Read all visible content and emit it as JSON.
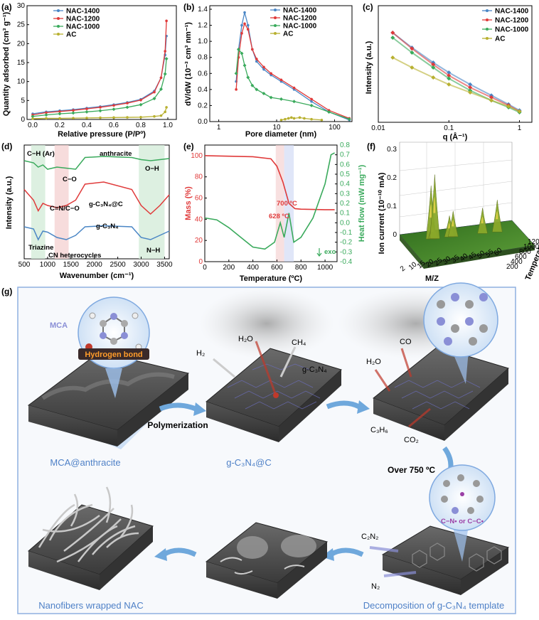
{
  "panel_a": {
    "label": "(a)",
    "title_x": "Relative pressure (P/Pº)",
    "title_y": "Quantity adsorbed (cm³ g⁻¹)",
    "xticks": [
      "0.0",
      "0.2",
      "0.4",
      "0.6",
      "0.8",
      "1.0"
    ],
    "yticks": [
      "0",
      "5",
      "10",
      "15",
      "20",
      "25",
      "30"
    ],
    "legend": [
      "NAC-1400",
      "NAC-1200",
      "NAC-1000",
      "AC"
    ]
  },
  "panel_b": {
    "label": "(b)",
    "title_x": "Pore diameter (nm)",
    "title_y": "dV/dW (10⁻³ cm³ nm⁻¹)",
    "xticks": [
      "1",
      "10",
      "100"
    ],
    "yticks": [
      "0.0",
      "0.2",
      "0.4",
      "0.6",
      "0.8",
      "1.0",
      "1.2",
      "1.4"
    ],
    "legend": [
      "NAC-1400",
      "NAC-1200",
      "NAC-1000",
      "AC"
    ]
  },
  "panel_c": {
    "label": "(c)",
    "title_x": "q (Å⁻¹)",
    "title_y": "Intensity (a.u.)",
    "xticks": [
      "0.01",
      "0.1",
      "1"
    ],
    "legend": [
      "NAC-1400",
      "NAC-1200",
      "NAC-1000",
      "AC"
    ]
  },
  "panel_d": {
    "label": "(d)",
    "title_x": "Wavenumber (cm⁻¹)",
    "title_y": "Intensity (a.u.)",
    "xticks": [
      "500",
      "1000",
      "1500",
      "2000",
      "2500",
      "3000",
      "3500"
    ],
    "annotations": [
      "C−H (Ar)",
      "anthracite",
      "O−H",
      "C−O",
      "C=N/C−O",
      "g-C₃N₄@C",
      "g-C₃N₄",
      "Triazine",
      "CN heterocycles",
      "N−H"
    ]
  },
  "panel_e": {
    "label": "(e)",
    "title_x": "Temperature (ºC)",
    "title_y_left": "Mass (%)",
    "title_y_right": "Heat flow (mW mg⁻¹)",
    "xticks": [
      "0",
      "200",
      "400",
      "600",
      "800",
      "1000"
    ],
    "yticks_left": [
      "0",
      "20",
      "40",
      "60",
      "80",
      "100"
    ],
    "yticks_right": [
      "-0.4",
      "-0.3",
      "-0.2",
      "-0.1",
      "0.0",
      "0.1",
      "0.2",
      "0.3",
      "0.4",
      "0.5",
      "0.6",
      "0.7",
      "0.8"
    ],
    "annotations": [
      "700 ºC",
      "628 ºC",
      "exo"
    ]
  },
  "panel_f": {
    "label": "(f)",
    "title_z": "Ion current (10⁻¹⁰ mA)",
    "title_x": "M/Z",
    "title_y": "Temperature (ºC)",
    "zticks": [
      "0",
      "0.1",
      "0.2",
      "0.3"
    ],
    "yticks": [
      "200",
      "400",
      "600",
      "800",
      "1000",
      "1200"
    ],
    "xticks": [
      "2",
      "10",
      "15",
      "20",
      "25",
      "30",
      "35",
      "40",
      "45",
      "50",
      "55",
      "60"
    ]
  },
  "panel_g": {
    "label": "(g)",
    "mca_label": "MCA",
    "hbond_label": "Hydrogen bond",
    "step1_caption": "MCA@anthracite",
    "polymerization": "Polymerization",
    "step2_caption": "g-C₃N₄@C",
    "h2": "H₂",
    "h2o": "H₂O",
    "ch4": "CH₄",
    "gcn": "g-C₃N₄",
    "h2o_b": "H₂O",
    "co": "CO",
    "c3h6": "C₃H₆",
    "co2": "CO₂",
    "over750": "Over 750 ºC",
    "c2n2": "C₂N₂",
    "n2": "N₂",
    "radical": "C−N• or C−C•",
    "step3_caption": "Decomposition of g-C₃N₄ template",
    "step4_caption": "Nanofibers wrapped NAC"
  },
  "colors": {
    "nac1400": "#4a86c5",
    "nac1200": "#e03a3a",
    "nac1000": "#3aaa5c",
    "ac": "#b8b030",
    "border": "#8fb0e0",
    "caption": "#4f81c7",
    "arrow": "#6fa8dc"
  },
  "chart_data": [
    {
      "type": "line",
      "title": "",
      "xlabel": "Relative pressure (P/Pº)",
      "ylabel": "Quantity adsorbed (cm³ g⁻¹)",
      "xlim": [
        0,
        1
      ],
      "ylim": [
        0,
        30
      ],
      "series": [
        {
          "name": "NAC-1400",
          "x": [
            0,
            0.1,
            0.2,
            0.3,
            0.4,
            0.5,
            0.6,
            0.7,
            0.8,
            0.9,
            0.95,
            0.98,
            0.99
          ],
          "y": [
            1.5,
            2,
            2.3,
            2.6,
            3,
            3.4,
            3.9,
            4.5,
            5.3,
            7.5,
            11,
            17,
            22
          ]
        },
        {
          "name": "NAC-1200",
          "x": [
            0,
            0.1,
            0.2,
            0.3,
            0.4,
            0.5,
            0.6,
            0.7,
            0.8,
            0.9,
            0.95,
            0.98,
            0.99
          ],
          "y": [
            1.2,
            1.8,
            2.1,
            2.4,
            2.8,
            3.2,
            3.7,
            4.3,
            5.1,
            7.2,
            11,
            18,
            26
          ]
        },
        {
          "name": "NAC-1000",
          "x": [
            0,
            0.1,
            0.2,
            0.3,
            0.4,
            0.5,
            0.6,
            0.7,
            0.8,
            0.9,
            0.95,
            0.98,
            0.99
          ],
          "y": [
            0.8,
            1.2,
            1.5,
            1.7,
            2,
            2.3,
            2.7,
            3.2,
            3.9,
            5.5,
            8,
            12,
            16
          ]
        },
        {
          "name": "AC",
          "x": [
            0,
            0.1,
            0.2,
            0.3,
            0.4,
            0.5,
            0.6,
            0.7,
            0.8,
            0.9,
            0.95,
            0.98,
            0.99
          ],
          "y": [
            0.2,
            0.3,
            0.3,
            0.35,
            0.4,
            0.45,
            0.5,
            0.55,
            0.6,
            0.8,
            1,
            2,
            3.2
          ]
        }
      ]
    },
    {
      "type": "line",
      "title": "",
      "xlabel": "Pore diameter (nm)",
      "ylabel": "dV/dW",
      "xscale": "log",
      "xlim": [
        0.7,
        200
      ],
      "ylim": [
        0,
        1.4
      ],
      "series": [
        {
          "name": "NAC-1400",
          "x": [
            2,
            2.2,
            2.5,
            2.8,
            3.2,
            3.8,
            4.5,
            6,
            8,
            12,
            20,
            40,
            80,
            180
          ],
          "y": [
            0.5,
            0.9,
            1.2,
            1.36,
            1.2,
            0.9,
            0.75,
            0.65,
            0.58,
            0.5,
            0.4,
            0.25,
            0.12,
            0.02
          ]
        },
        {
          "name": "NAC-1200",
          "x": [
            2,
            2.2,
            2.5,
            2.8,
            3.2,
            3.8,
            4.5,
            6,
            8,
            12,
            20,
            40,
            80,
            180
          ],
          "y": [
            0.4,
            0.8,
            1.1,
            1.22,
            1.15,
            0.9,
            0.78,
            0.68,
            0.6,
            0.52,
            0.42,
            0.28,
            0.14,
            0.04
          ]
        },
        {
          "name": "NAC-1000",
          "x": [
            2,
            2.2,
            2.5,
            2.8,
            3.2,
            3.8,
            4.5,
            6,
            8,
            12,
            20,
            40,
            80,
            180
          ],
          "y": [
            0.6,
            0.9,
            0.85,
            0.7,
            0.55,
            0.45,
            0.4,
            0.35,
            0.3,
            0.28,
            0.25,
            0.2,
            0.12,
            0.03
          ]
        },
        {
          "name": "AC",
          "x": [
            12,
            14,
            16,
            18,
            20,
            25,
            30,
            40,
            60
          ],
          "y": [
            0.02,
            0.03,
            0.04,
            0.05,
            0.04,
            0.05,
            0.04,
            0.03,
            0.02
          ]
        }
      ]
    },
    {
      "type": "scatter",
      "title": "",
      "xlabel": "q (Å⁻¹)",
      "ylabel": "Intensity (a.u.)",
      "xscale": "log",
      "xlim": [
        0.01,
        1.5
      ],
      "series": [
        {
          "name": "NAC-1400",
          "x": [
            0.016,
            0.03,
            0.06,
            0.1,
            0.2,
            0.4,
            0.7,
            1
          ],
          "y": [
            0.9,
            0.75,
            0.6,
            0.5,
            0.38,
            0.27,
            0.18,
            0.12
          ]
        },
        {
          "name": "NAC-1200",
          "x": [
            0.016,
            0.03,
            0.06,
            0.1,
            0.2,
            0.4,
            0.7,
            1
          ],
          "y": [
            0.9,
            0.74,
            0.58,
            0.47,
            0.35,
            0.25,
            0.17,
            0.11
          ]
        },
        {
          "name": "NAC-1000",
          "x": [
            0.016,
            0.03,
            0.06,
            0.1,
            0.2,
            0.4,
            0.7,
            1
          ],
          "y": [
            0.85,
            0.7,
            0.55,
            0.44,
            0.32,
            0.22,
            0.15,
            0.1
          ]
        },
        {
          "name": "AC",
          "x": [
            0.016,
            0.03,
            0.06,
            0.1,
            0.2,
            0.4,
            0.7,
            1
          ],
          "y": [
            0.65,
            0.55,
            0.45,
            0.38,
            0.3,
            0.22,
            0.16,
            0.11
          ]
        }
      ]
    },
    {
      "type": "line",
      "title": "",
      "xlabel": "Wavenumber (cm⁻¹)",
      "ylabel": "Intensity (a.u.)",
      "xlim": [
        500,
        3600
      ],
      "series": [
        {
          "name": "anthracite",
          "x": [
            500,
            700,
            800,
            900,
            1000,
            1200,
            1400,
            1600,
            1800,
            2200,
            2800,
            3000,
            3200,
            3400,
            3600
          ],
          "y": [
            0.92,
            0.9,
            0.86,
            0.88,
            0.84,
            0.86,
            0.85,
            0.84,
            0.95,
            0.96,
            0.95,
            0.93,
            0.92,
            0.93,
            0.94
          ]
        },
        {
          "name": "g-C₃N₄@C",
          "x": [
            500,
            700,
            800,
            900,
            1000,
            1200,
            1400,
            1600,
            1800,
            2200,
            2800,
            3000,
            3200,
            3400,
            3600
          ],
          "y": [
            0.65,
            0.55,
            0.45,
            0.52,
            0.5,
            0.48,
            0.5,
            0.55,
            0.7,
            0.72,
            0.65,
            0.5,
            0.42,
            0.5,
            0.6
          ]
        },
        {
          "name": "g-C₃N₄",
          "x": [
            500,
            700,
            800,
            900,
            1000,
            1200,
            1400,
            1600,
            1800,
            2200,
            2800,
            3000,
            3200,
            3400,
            3600
          ],
          "y": [
            0.3,
            0.28,
            0.18,
            0.26,
            0.25,
            0.2,
            0.18,
            0.22,
            0.3,
            0.31,
            0.3,
            0.2,
            0.18,
            0.22,
            0.26
          ]
        }
      ]
    },
    {
      "type": "line",
      "title": "",
      "xlabel": "Temperature (ºC)",
      "ylabel": "Mass (%)",
      "xlim": [
        0,
        1100
      ],
      "ylim": [
        0,
        100
      ],
      "series": [
        {
          "name": "Mass (%)",
          "x": [
            0,
            200,
            400,
            550,
            600,
            650,
            700,
            750,
            800,
            1000,
            1080
          ],
          "y": [
            100,
            99.5,
            99,
            97,
            90,
            75,
            55,
            50,
            49.5,
            49,
            49
          ]
        },
        {
          "name": "Heat flow (mW mg⁻¹)",
          "x": [
            0,
            100,
            200,
            300,
            400,
            500,
            580,
            628,
            660,
            700,
            740,
            800,
            900,
            1000,
            1050,
            1080
          ],
          "y": [
            0.05,
            0.03,
            -0.05,
            -0.15,
            -0.25,
            -0.27,
            -0.2,
            0.0,
            -0.15,
            0.1,
            -0.2,
            -0.15,
            0.05,
            0.4,
            0.7,
            0.72
          ]
        }
      ]
    },
    {
      "type": "area",
      "title": "",
      "xlabel": "M/Z",
      "ylabel": "Temperature (ºC)",
      "zlabel": "Ion current (10⁻¹⁰ mA)",
      "series": [
        {
          "name": "peaks",
          "x": [
            16,
            17,
            18,
            26,
            28,
            44,
            52
          ],
          "y": [
            0.25,
            0.08,
            0.3,
            0.1,
            0.12,
            0.12,
            0.15
          ]
        }
      ]
    }
  ]
}
